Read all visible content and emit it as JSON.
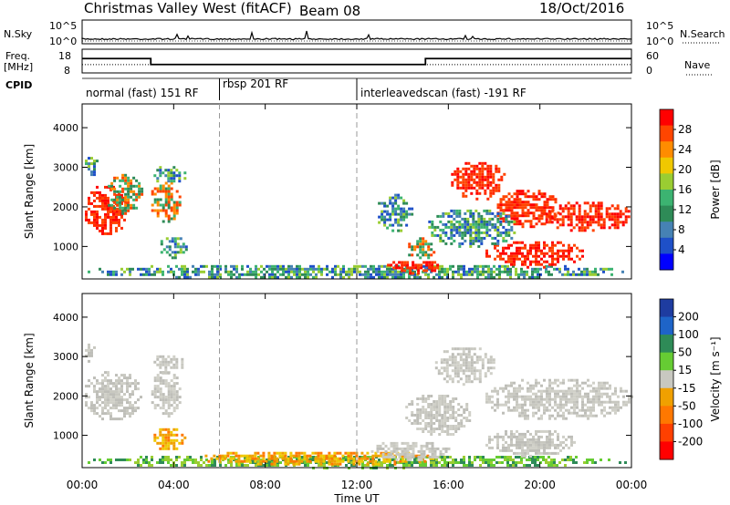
{
  "header": {
    "title": "Christmas Valley West (fitACF)",
    "beam": "Beam 08",
    "date": "18/Oct/2016"
  },
  "side_labels": {
    "nsky": "N.Sky",
    "nsearch": "N.Search",
    "freq": "Freq.",
    "freq_unit": "[MHz]",
    "nave": "Nave",
    "cpid": "CPID"
  },
  "noise_axis": {
    "ticks_left": [
      "10^5",
      "10^0"
    ],
    "ticks_right": [
      "10^5",
      "10^0"
    ]
  },
  "freq_axis": {
    "ticks_left": [
      "18",
      "8"
    ],
    "ticks_right": [
      "60",
      "0"
    ]
  },
  "cpid_modes": [
    {
      "label": "normal (fast) 151 RF",
      "start_hour": 0,
      "end_hour": 6
    },
    {
      "label": "rbsp 201 RF",
      "start_hour": 6,
      "end_hour": 12
    },
    {
      "label": "interleavedscan (fast) -191 RF",
      "start_hour": 12,
      "end_hour": 24
    }
  ],
  "freq_series": {
    "steps": [
      {
        "start_hour": 0,
        "end_hour": 3.0,
        "freq_mhz": 14.5
      },
      {
        "start_hour": 3.0,
        "end_hour": 15.0,
        "freq_mhz": 11.0
      },
      {
        "start_hour": 15.0,
        "end_hour": 24,
        "freq_mhz": 14.5
      }
    ],
    "nave_level": 21
  },
  "chart_data": [
    {
      "type": "heatmap",
      "name": "power",
      "ylabel": "Slant Range [km]",
      "xlabel": "",
      "xlim_hours": [
        0,
        24
      ],
      "ylim_km": [
        180,
        4600
      ],
      "yticks": [
        1000,
        2000,
        3000,
        4000
      ],
      "colorbar": {
        "label": "Power [dB]",
        "ticks": [
          "28",
          "24",
          "20",
          "16",
          "12",
          "8",
          "4"
        ],
        "colors": [
          "#ff0000",
          "#ff4500",
          "#ff8c00",
          "#f0c800",
          "#9acd32",
          "#3cb371",
          "#2e8b57",
          "#4682b4",
          "#1e50c8",
          "#0000ff"
        ]
      },
      "regions": [
        {
          "x0": 0.0,
          "x1": 2.0,
          "y0": 1300,
          "y1": 2600,
          "level": "high"
        },
        {
          "x0": 1.0,
          "x1": 2.6,
          "y0": 1800,
          "y1": 2900,
          "level": "mid"
        },
        {
          "x0": 0.0,
          "x1": 0.7,
          "y0": 2800,
          "y1": 3400,
          "level": "low"
        },
        {
          "x0": 2.9,
          "x1": 4.3,
          "y0": 1600,
          "y1": 2700,
          "level": "mid"
        },
        {
          "x0": 3.3,
          "x1": 4.6,
          "y0": 700,
          "y1": 1300,
          "level": "low"
        },
        {
          "x0": 3.0,
          "x1": 4.5,
          "y0": 2600,
          "y1": 3100,
          "level": "low"
        },
        {
          "x0": 0.0,
          "x1": 24.0,
          "y0": 200,
          "y1": 600,
          "level": "low"
        },
        {
          "x0": 13.2,
          "x1": 15.6,
          "y0": 350,
          "y1": 700,
          "level": "high"
        },
        {
          "x0": 14.0,
          "x1": 15.4,
          "y0": 700,
          "y1": 1300,
          "level": "mid"
        },
        {
          "x0": 12.8,
          "x1": 14.4,
          "y0": 1400,
          "y1": 2400,
          "level": "low"
        },
        {
          "x0": 16.0,
          "x1": 18.5,
          "y0": 2200,
          "y1": 3200,
          "level": "high"
        },
        {
          "x0": 18.0,
          "x1": 20.8,
          "y0": 1500,
          "y1": 2500,
          "level": "high"
        },
        {
          "x0": 20.0,
          "x1": 24.0,
          "y0": 1400,
          "y1": 2200,
          "level": "high"
        },
        {
          "x0": 17.5,
          "x1": 22.0,
          "y0": 500,
          "y1": 1200,
          "level": "high"
        },
        {
          "x0": 15.0,
          "x1": 19.0,
          "y0": 1000,
          "y1": 2000,
          "level": "low"
        }
      ]
    },
    {
      "type": "heatmap",
      "name": "velocity",
      "ylabel": "Slant Range [km]",
      "xlabel": "Time UT",
      "xticks": [
        "00:00",
        "04:00",
        "08:00",
        "12:00",
        "16:00",
        "20:00",
        "00:00"
      ],
      "xlim_hours": [
        0,
        24
      ],
      "ylim_km": [
        180,
        4600
      ],
      "yticks": [
        1000,
        2000,
        3000,
        4000
      ],
      "colorbar": {
        "label": "Velocity [m s⁻¹]",
        "ticks": [
          "200",
          "100",
          "50",
          "15",
          "-15",
          "-50",
          "-100",
          "-200"
        ],
        "colors": [
          "#1e3ca0",
          "#1e64c8",
          "#2e8b57",
          "#66cc33",
          "#c8c8c0",
          "#f0a000",
          "#ff7800",
          "#ff4000",
          "#ff0000"
        ]
      },
      "regions": [
        {
          "x0": 0.0,
          "x1": 2.6,
          "y0": 1400,
          "y1": 2700,
          "level": "grey"
        },
        {
          "x0": 0.0,
          "x1": 0.6,
          "y0": 2900,
          "y1": 3400,
          "level": "grey"
        },
        {
          "x0": 2.9,
          "x1": 4.3,
          "y0": 1500,
          "y1": 2700,
          "level": "grey"
        },
        {
          "x0": 3.0,
          "x1": 4.4,
          "y0": 2600,
          "y1": 3100,
          "level": "grey"
        },
        {
          "x0": 3.0,
          "x1": 4.5,
          "y0": 650,
          "y1": 1250,
          "level": "orange"
        },
        {
          "x0": 0.0,
          "x1": 24.0,
          "y0": 200,
          "y1": 550,
          "level": "green"
        },
        {
          "x0": 5.0,
          "x1": 15.5,
          "y0": 250,
          "y1": 650,
          "level": "orange"
        },
        {
          "x0": 15.3,
          "x1": 18.0,
          "y0": 2300,
          "y1": 3300,
          "level": "grey"
        },
        {
          "x0": 17.5,
          "x1": 24.0,
          "y0": 1400,
          "y1": 2500,
          "level": "grey"
        },
        {
          "x0": 14.0,
          "x1": 17.0,
          "y0": 1000,
          "y1": 2100,
          "level": "grey"
        },
        {
          "x0": 17.5,
          "x1": 21.5,
          "y0": 500,
          "y1": 1200,
          "level": "grey"
        },
        {
          "x0": 12.5,
          "x1": 16.0,
          "y0": 400,
          "y1": 900,
          "level": "grey"
        }
      ]
    }
  ]
}
